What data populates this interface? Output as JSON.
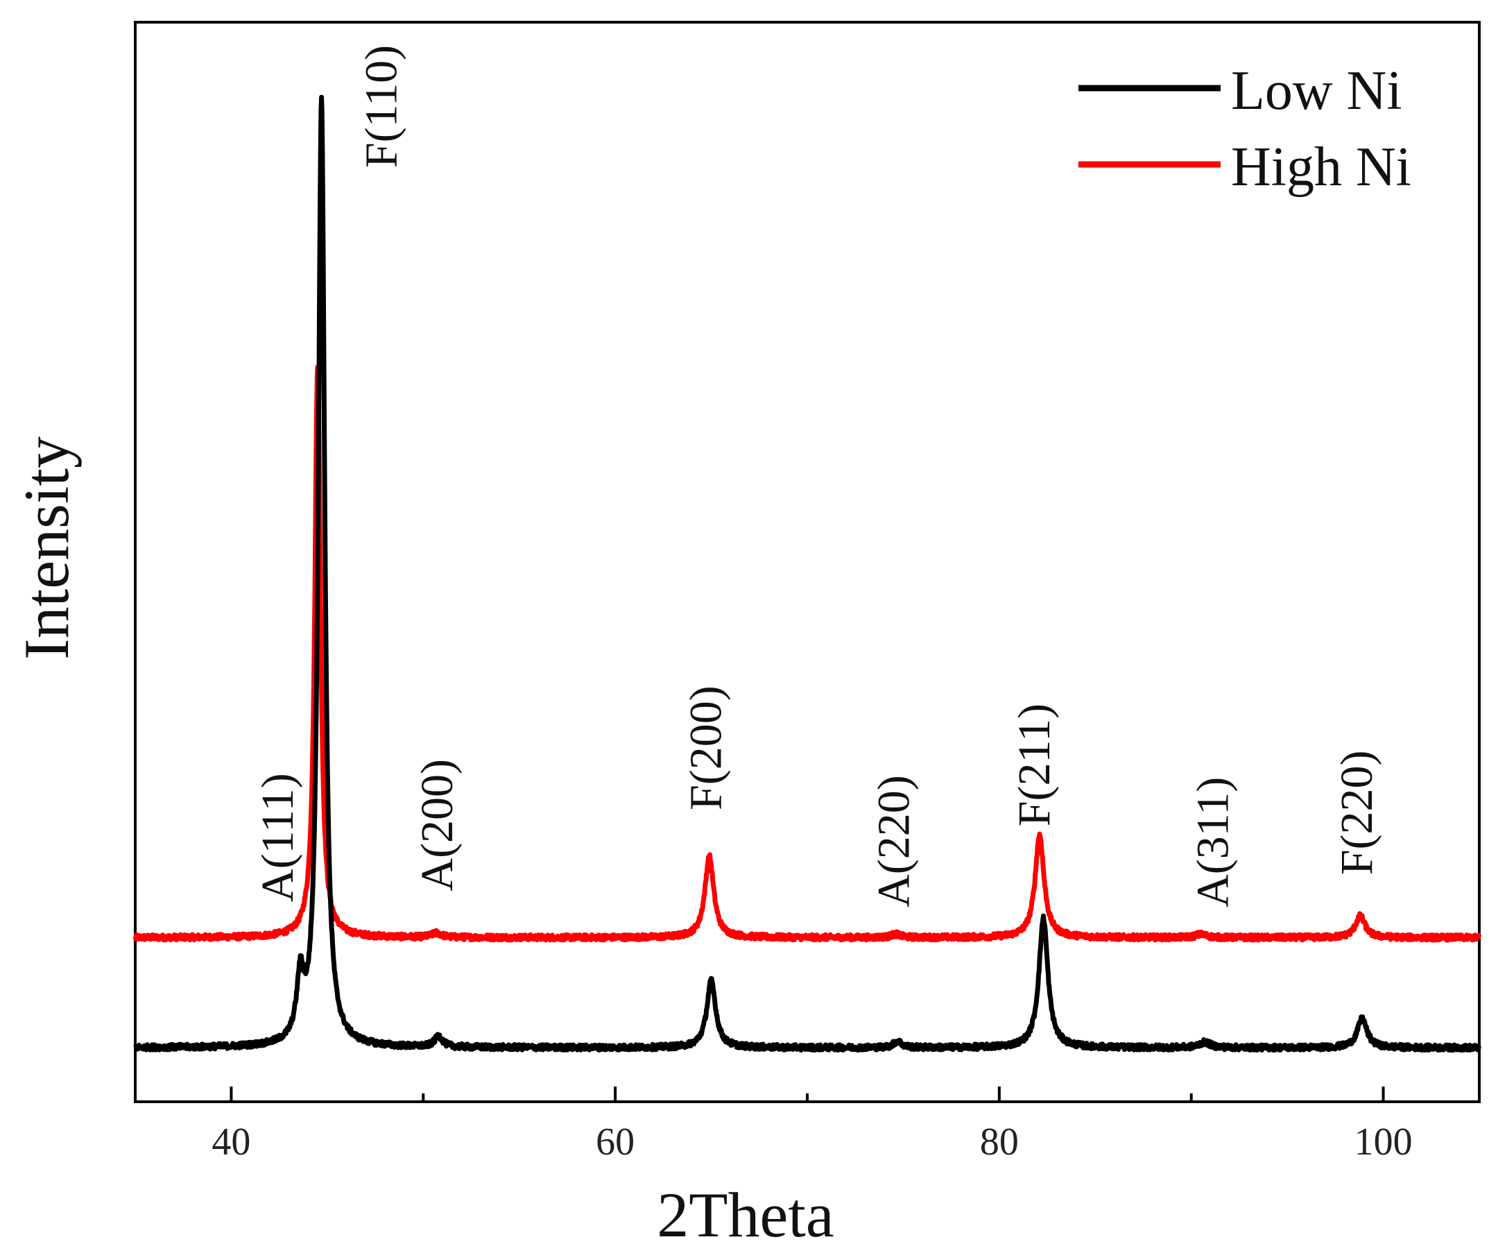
{
  "chart_data": {
    "type": "line",
    "title": "",
    "xlabel": "2Theta",
    "ylabel": "Intensity",
    "xlim": [
      35,
      105
    ],
    "ylim": [
      0,
      100
    ],
    "y_ticks_shown": false,
    "x_ticks": [
      40,
      60,
      80,
      100
    ],
    "x_minor_ticks": [
      50,
      70,
      90
    ],
    "legend": {
      "position": "top-right"
    },
    "series": [
      {
        "name": "Low Ni",
        "color": "#000000",
        "baseline": 5,
        "noise": 0.5,
        "peaks": [
          {
            "x": 43.6,
            "height": 5.5,
            "width": 0.22
          },
          {
            "x": 44.7,
            "height": 88,
            "width": 0.2
          },
          {
            "x": 50.8,
            "height": 1.0,
            "width": 0.25
          },
          {
            "x": 65.0,
            "height": 6.2,
            "width": 0.28
          },
          {
            "x": 74.7,
            "height": 0.6,
            "width": 0.25
          },
          {
            "x": 82.3,
            "height": 12,
            "width": 0.28
          },
          {
            "x": 90.7,
            "height": 0.5,
            "width": 0.35
          },
          {
            "x": 98.9,
            "height": 2.7,
            "width": 0.3
          }
        ]
      },
      {
        "name": "High Ni",
        "color": "#ff0000",
        "baseline": 15.2,
        "noise": 0.5,
        "peaks": [
          {
            "x": 44.5,
            "height": 53,
            "width": 0.18
          },
          {
            "x": 50.7,
            "height": 0.4,
            "width": 0.3
          },
          {
            "x": 64.9,
            "height": 7.5,
            "width": 0.28
          },
          {
            "x": 74.6,
            "height": 0.3,
            "width": 0.3
          },
          {
            "x": 82.1,
            "height": 9.5,
            "width": 0.28
          },
          {
            "x": 90.5,
            "height": 0.3,
            "width": 0.35
          },
          {
            "x": 98.8,
            "height": 2.0,
            "width": 0.3
          }
        ]
      }
    ],
    "annotations": [
      {
        "text": "A(111)",
        "x": 43.2,
        "y_bottom": 18.5
      },
      {
        "text": "F(110)",
        "x": 48.6,
        "y_bottom": 86.5
      },
      {
        "text": "A(200)",
        "x": 51.5,
        "y_bottom": 19.5
      },
      {
        "text": "F(200)",
        "x": 65.5,
        "y_bottom": 27
      },
      {
        "text": "A(220)",
        "x": 75.3,
        "y_bottom": 18
      },
      {
        "text": "F(211)",
        "x": 82.6,
        "y_bottom": 25.5
      },
      {
        "text": "A(311)",
        "x": 91.9,
        "y_bottom": 18
      },
      {
        "text": "F(220)",
        "x": 99.4,
        "y_bottom": 21
      }
    ]
  }
}
